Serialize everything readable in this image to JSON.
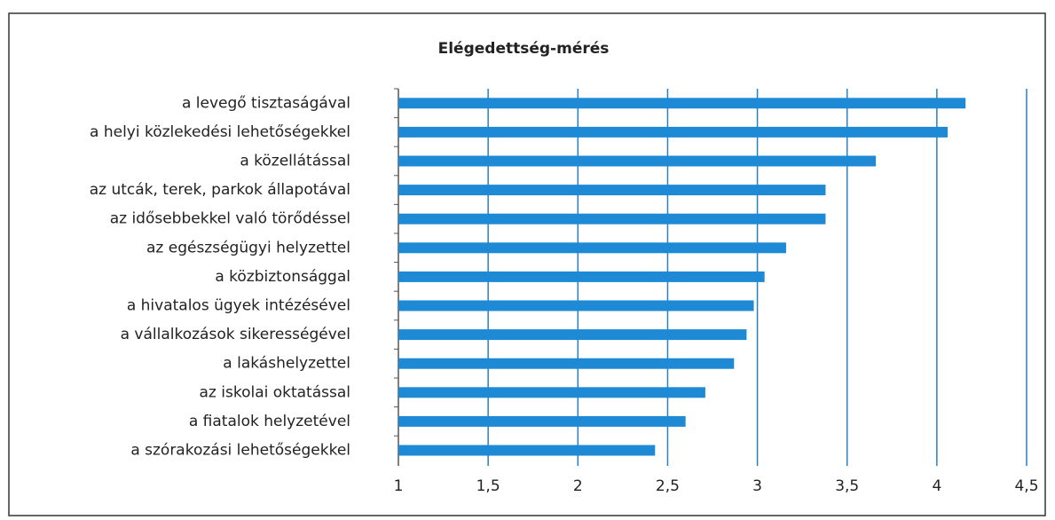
{
  "chart_data": {
    "type": "bar",
    "orientation": "horizontal",
    "title": "Elégedettség-mérés",
    "categories": [
      "a levegő tisztaságával",
      "a helyi közlekedési lehetőségekkel",
      "a közellátással",
      "az utcák, terek, parkok állapotával",
      "az idősebbekkel való törődéssel",
      "az egészségügyi helyzettel",
      "a közbiztonsággal",
      "a hivatalos ügyek intézésével",
      "a vállalkozások sikerességével",
      "a lakáshelyzettel",
      "az iskolai oktatással",
      "a fiatalok helyzetével",
      "a szórakozási lehetőségekkel"
    ],
    "values": [
      4.16,
      4.06,
      3.66,
      3.38,
      3.38,
      3.16,
      3.04,
      2.98,
      2.94,
      2.87,
      2.71,
      2.6,
      2.43
    ],
    "color": "#1e8ad6",
    "xlim": [
      1,
      4.5
    ],
    "xticks": [
      1,
      {
        "value": 1.5,
        "label": "1,5"
      },
      2,
      {
        "value": 2.5,
        "label": "2,5"
      },
      3,
      {
        "value": 3.5,
        "label": "3,5"
      },
      4,
      {
        "value": 4.5,
        "label": "4,5"
      }
    ],
    "grid": true
  }
}
